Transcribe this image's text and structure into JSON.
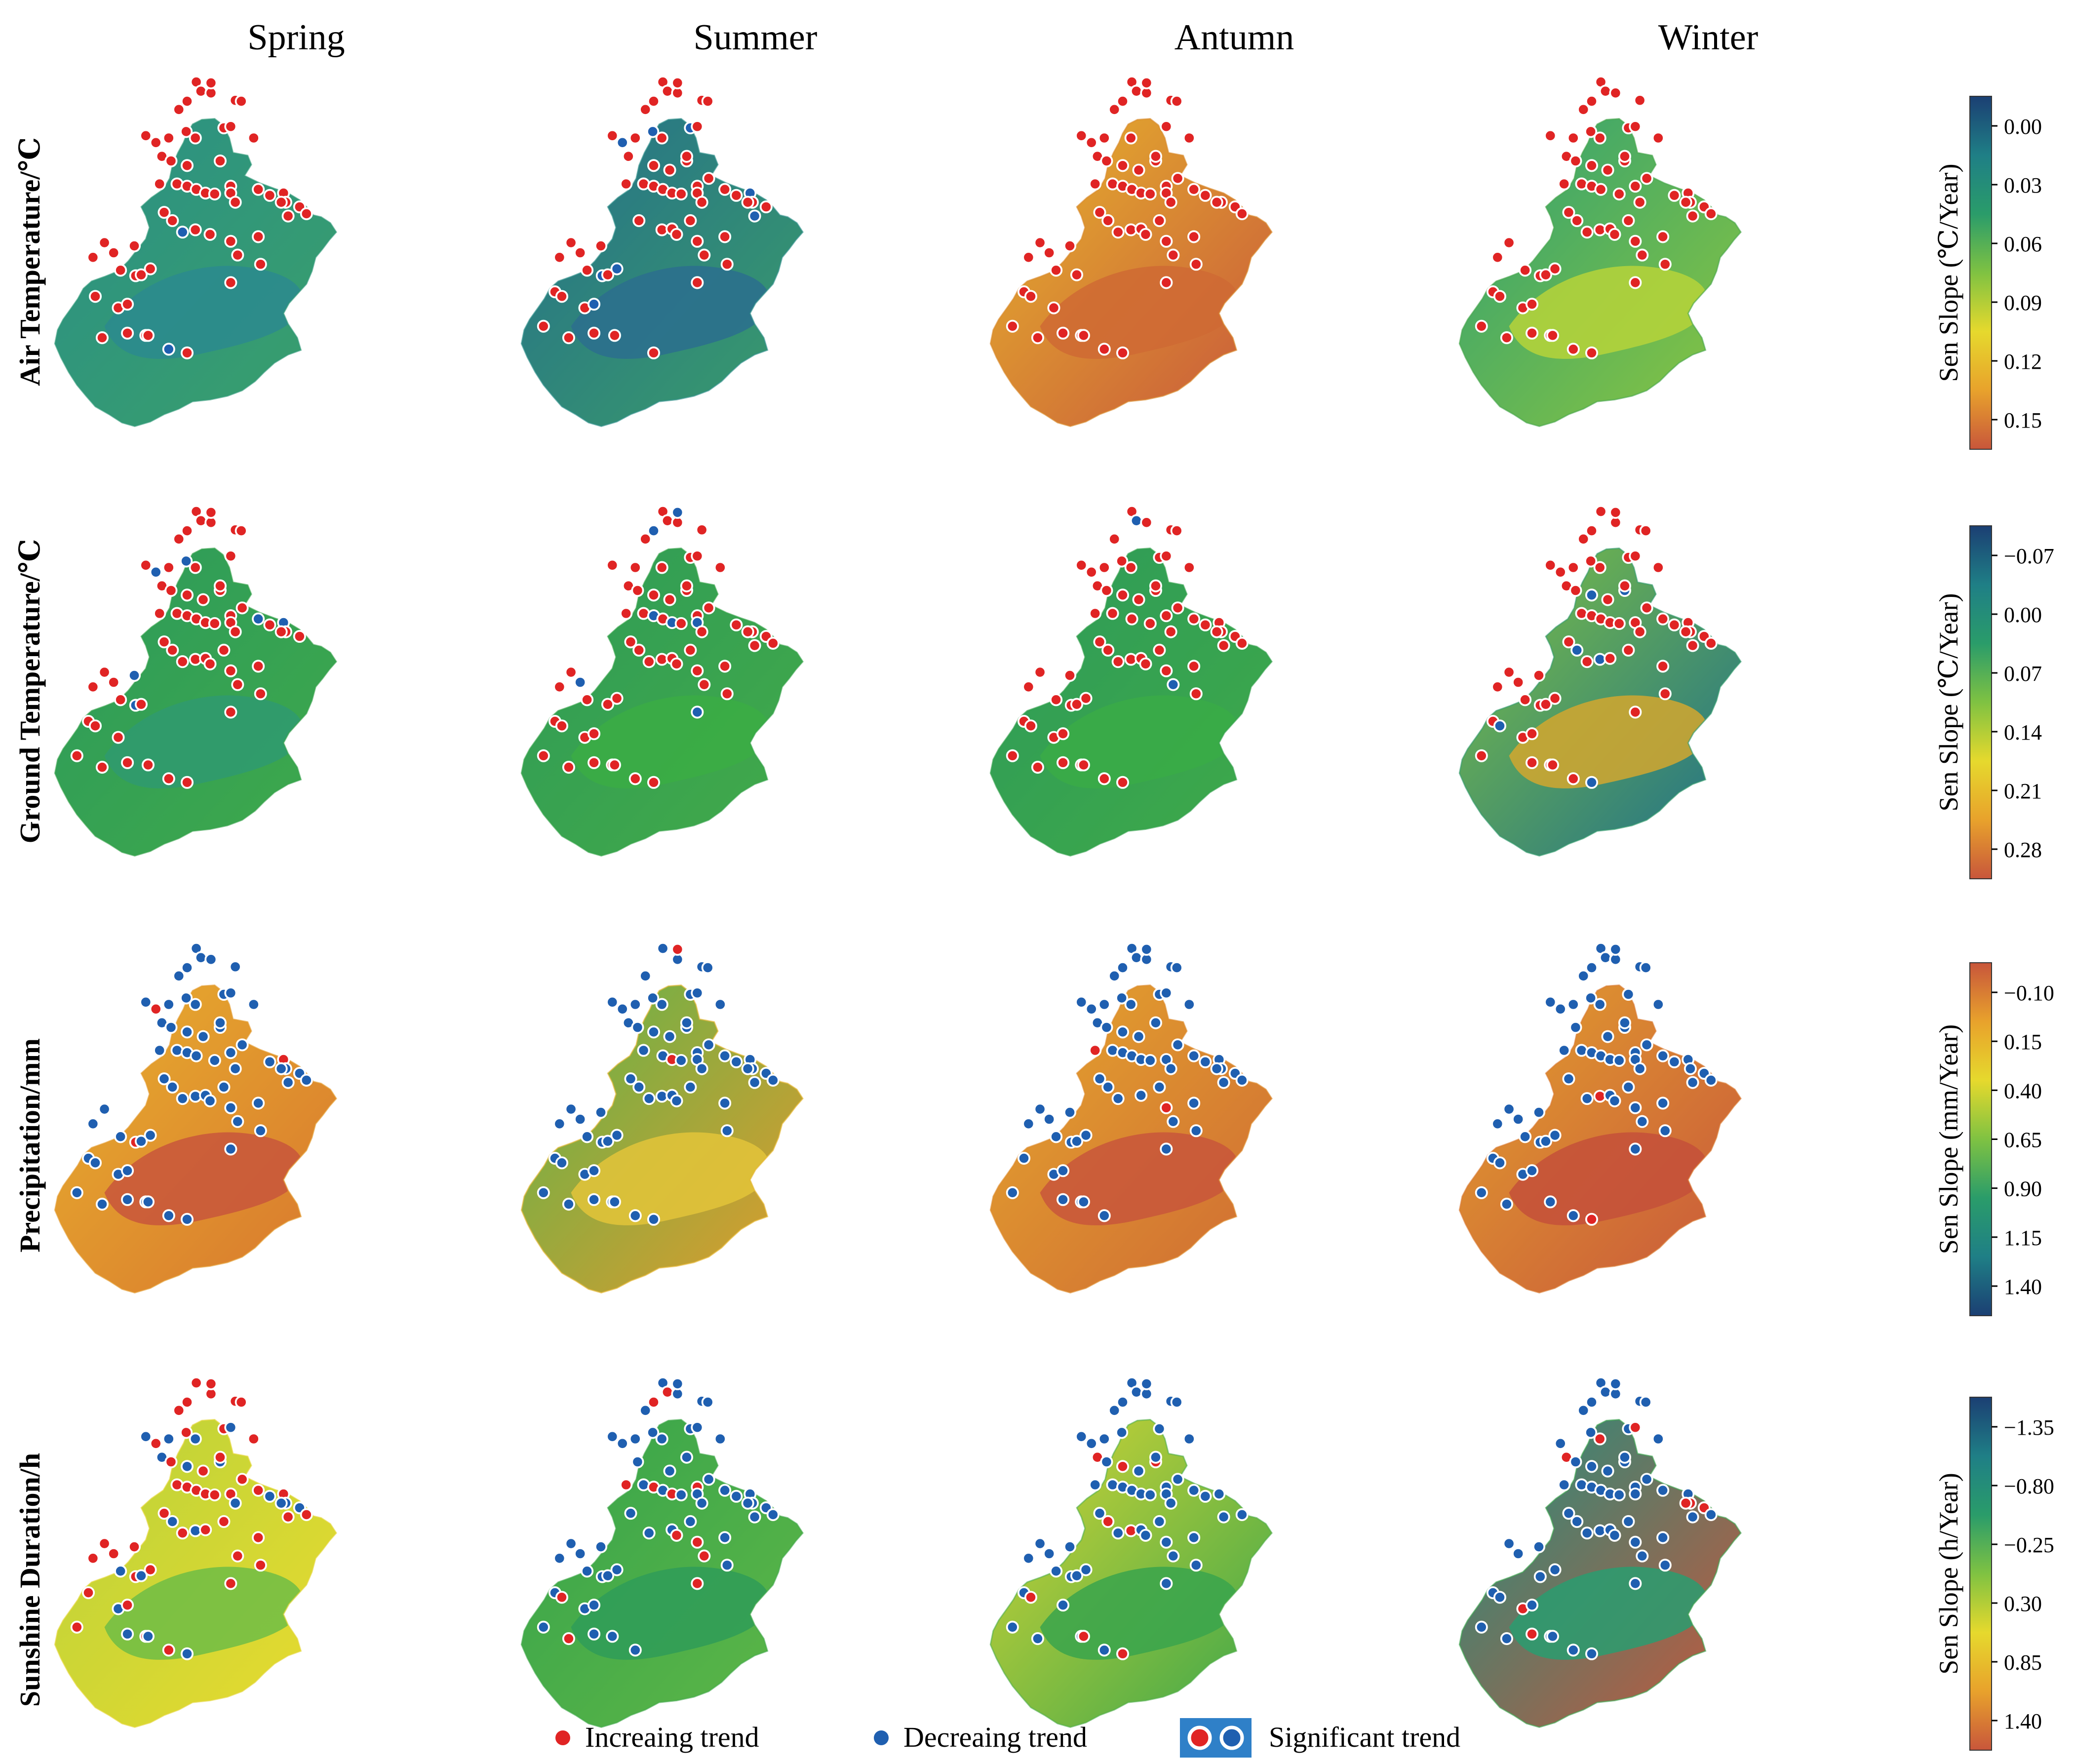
{
  "columns": [
    "Spring",
    "Summer",
    "Antumn",
    "Winter"
  ],
  "rows": [
    {
      "label": "Air Temperature/℃",
      "colorbar": {
        "label": "Sen Slope (℃/Year)",
        "ticks": [
          "0.00",
          "0.03",
          "0.06",
          "0.09",
          "0.12",
          "0.15"
        ],
        "ramp": [
          "#1b3f73",
          "#1f7f86",
          "#2a9c6a",
          "#7fc242",
          "#e6d92d",
          "#e8a22c",
          "#c8563b"
        ]
      },
      "panels": [
        {
          "base": "#2f9a78",
          "gradient": [
            "#2a8f86",
            "#3aa06a"
          ],
          "blob": "#2b8a8e",
          "markers": {
            "increase": 62,
            "decrease": 2
          }
        },
        {
          "base": "#2f8f8a",
          "gradient": [
            "#256f8a",
            "#3a9d6a"
          ],
          "blob": "#2b6f8e",
          "markers": {
            "increase": 56,
            "decrease": 8
          }
        },
        {
          "base": "#d9892a",
          "gradient": [
            "#e7b52c",
            "#c8563b"
          ],
          "blob": "#cf6a34",
          "markers": {
            "increase": 64,
            "decrease": 0
          }
        },
        {
          "base": "#45a54a",
          "gradient": [
            "#2fa073",
            "#8cc63f"
          ],
          "blob": "#b6d33a",
          "markers": {
            "increase": 63,
            "decrease": 0
          }
        }
      ]
    },
    {
      "label": "Ground Temperature/℃",
      "colorbar": {
        "label": "Sen Slope (℃/Year)",
        "ticks": [
          "−0.07",
          "0.00",
          "0.07",
          "0.14",
          "0.21",
          "0.28"
        ],
        "ramp": [
          "#1b3f73",
          "#1f7f86",
          "#2a9c6a",
          "#7fc242",
          "#e6d92d",
          "#e8a22c",
          "#c8563b"
        ]
      },
      "panels": [
        {
          "base": "#34a24a",
          "gradient": [
            "#2c9a5c",
            "#3fa94a"
          ],
          "blob": "#2f9a70",
          "markers": {
            "increase": 58,
            "decrease": 6
          }
        },
        {
          "base": "#36a34a",
          "gradient": [
            "#2e9b58",
            "#43aa48"
          ],
          "blob": "#3bad44",
          "markers": {
            "increase": 57,
            "decrease": 7
          }
        },
        {
          "base": "#33a24c",
          "gradient": [
            "#2d9a5a",
            "#3faa48"
          ],
          "blob": "#3aab46",
          "markers": {
            "increase": 62,
            "decrease": 2
          }
        },
        {
          "base": "#2f9a6a",
          "gradient": [
            "#7fc242",
            "#1f6f8a"
          ],
          "blob": "#d2a72f",
          "markers": {
            "increase": 58,
            "decrease": 6
          }
        }
      ]
    },
    {
      "label": "Precipitation/mm",
      "colorbar": {
        "label": "Sen Slope (mm/Year)",
        "ticks": [
          "−0.10",
          "0.15",
          "0.40",
          "0.65",
          "0.90",
          "1.15",
          "1.40"
        ],
        "ramp": [
          "#c8563b",
          "#e8a22c",
          "#e6d92d",
          "#7fc242",
          "#2a9c6a",
          "#1f7f86",
          "#1b3f73"
        ]
      },
      "panels": [
        {
          "base": "#e29a2c",
          "gradient": [
            "#e8b02e",
            "#d8762e"
          ],
          "blob": "#c8563b",
          "markers": {
            "increase": 3,
            "decrease": 61
          }
        },
        {
          "base": "#e6b52e",
          "gradient": [
            "#5fb44a",
            "#e29a2c"
          ],
          "blob": "#e3c43a",
          "markers": {
            "increase": 2,
            "decrease": 62
          }
        },
        {
          "base": "#dd8a2c",
          "gradient": [
            "#e5a62d",
            "#cf6a34"
          ],
          "blob": "#c8563b",
          "markers": {
            "increase": 2,
            "decrease": 62
          }
        },
        {
          "base": "#d8782f",
          "gradient": [
            "#e3a02d",
            "#c8563b"
          ],
          "blob": "#c4503a",
          "markers": {
            "increase": 2,
            "decrease": 62
          }
        }
      ]
    },
    {
      "label": "Sunshine Duration/h",
      "colorbar": {
        "label": "Sen Slope (h/Year)",
        "ticks": [
          "−1.35",
          "−0.80",
          "−0.25",
          "0.30",
          "0.85",
          "1.40"
        ],
        "ramp": [
          "#1b3f73",
          "#1f7f86",
          "#2a9c6a",
          "#7fc242",
          "#e6d92d",
          "#e8a22c",
          "#c8563b"
        ]
      },
      "panels": [
        {
          "base": "#e2d534",
          "gradient": [
            "#b8d23a",
            "#eadb2e"
          ],
          "blob": "#6fbd45",
          "markers": {
            "increase": 44,
            "decrease": 20
          }
        },
        {
          "base": "#3fa94a",
          "gradient": [
            "#35a34c",
            "#5fb746"
          ],
          "blob": "#2f9c58",
          "markers": {
            "increase": 12,
            "decrease": 52
          }
        },
        {
          "base": "#4cad47",
          "gradient": [
            "#d6d634",
            "#3aa64b"
          ],
          "blob": "#39a54c",
          "markers": {
            "increase": 8,
            "decrease": 56
          }
        },
        {
          "base": "#3aa54c",
          "gradient": [
            "#1f8f80",
            "#c8563b"
          ],
          "blob": "#2a9c70",
          "markers": {
            "increase": 8,
            "decrease": 56
          }
        }
      ]
    }
  ],
  "legend": {
    "increase_label": "Increaing trend",
    "decrease_label": "Decreaing trend",
    "significant_label": "Significant trend",
    "increase_color": "#e02424",
    "decrease_color": "#1f5fb0",
    "significant_box_color": "#2f80c8"
  }
}
